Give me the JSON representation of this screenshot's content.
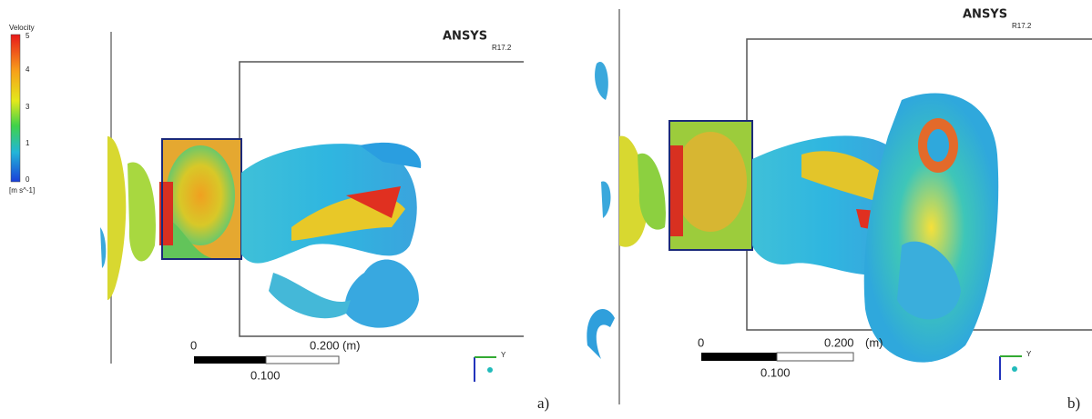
{
  "legend": {
    "title": "Velocity",
    "ticks": [
      "5",
      "4",
      "3",
      "1",
      "0"
    ],
    "unit": "[m s^-1]"
  },
  "panels": [
    {
      "label": "a)",
      "logo": "ANSYS",
      "version": "R17.2",
      "scale": {
        "start": "0",
        "end": "0.200",
        "unit": "(m)",
        "mid": "0.100"
      },
      "axis": "Y"
    },
    {
      "label": "b)",
      "logo": "ANSYS",
      "version": "R17.2",
      "scale": {
        "start": "0",
        "end": "0.200",
        "unit": "(m)",
        "mid": "0.100"
      },
      "axis": "Y"
    }
  ]
}
